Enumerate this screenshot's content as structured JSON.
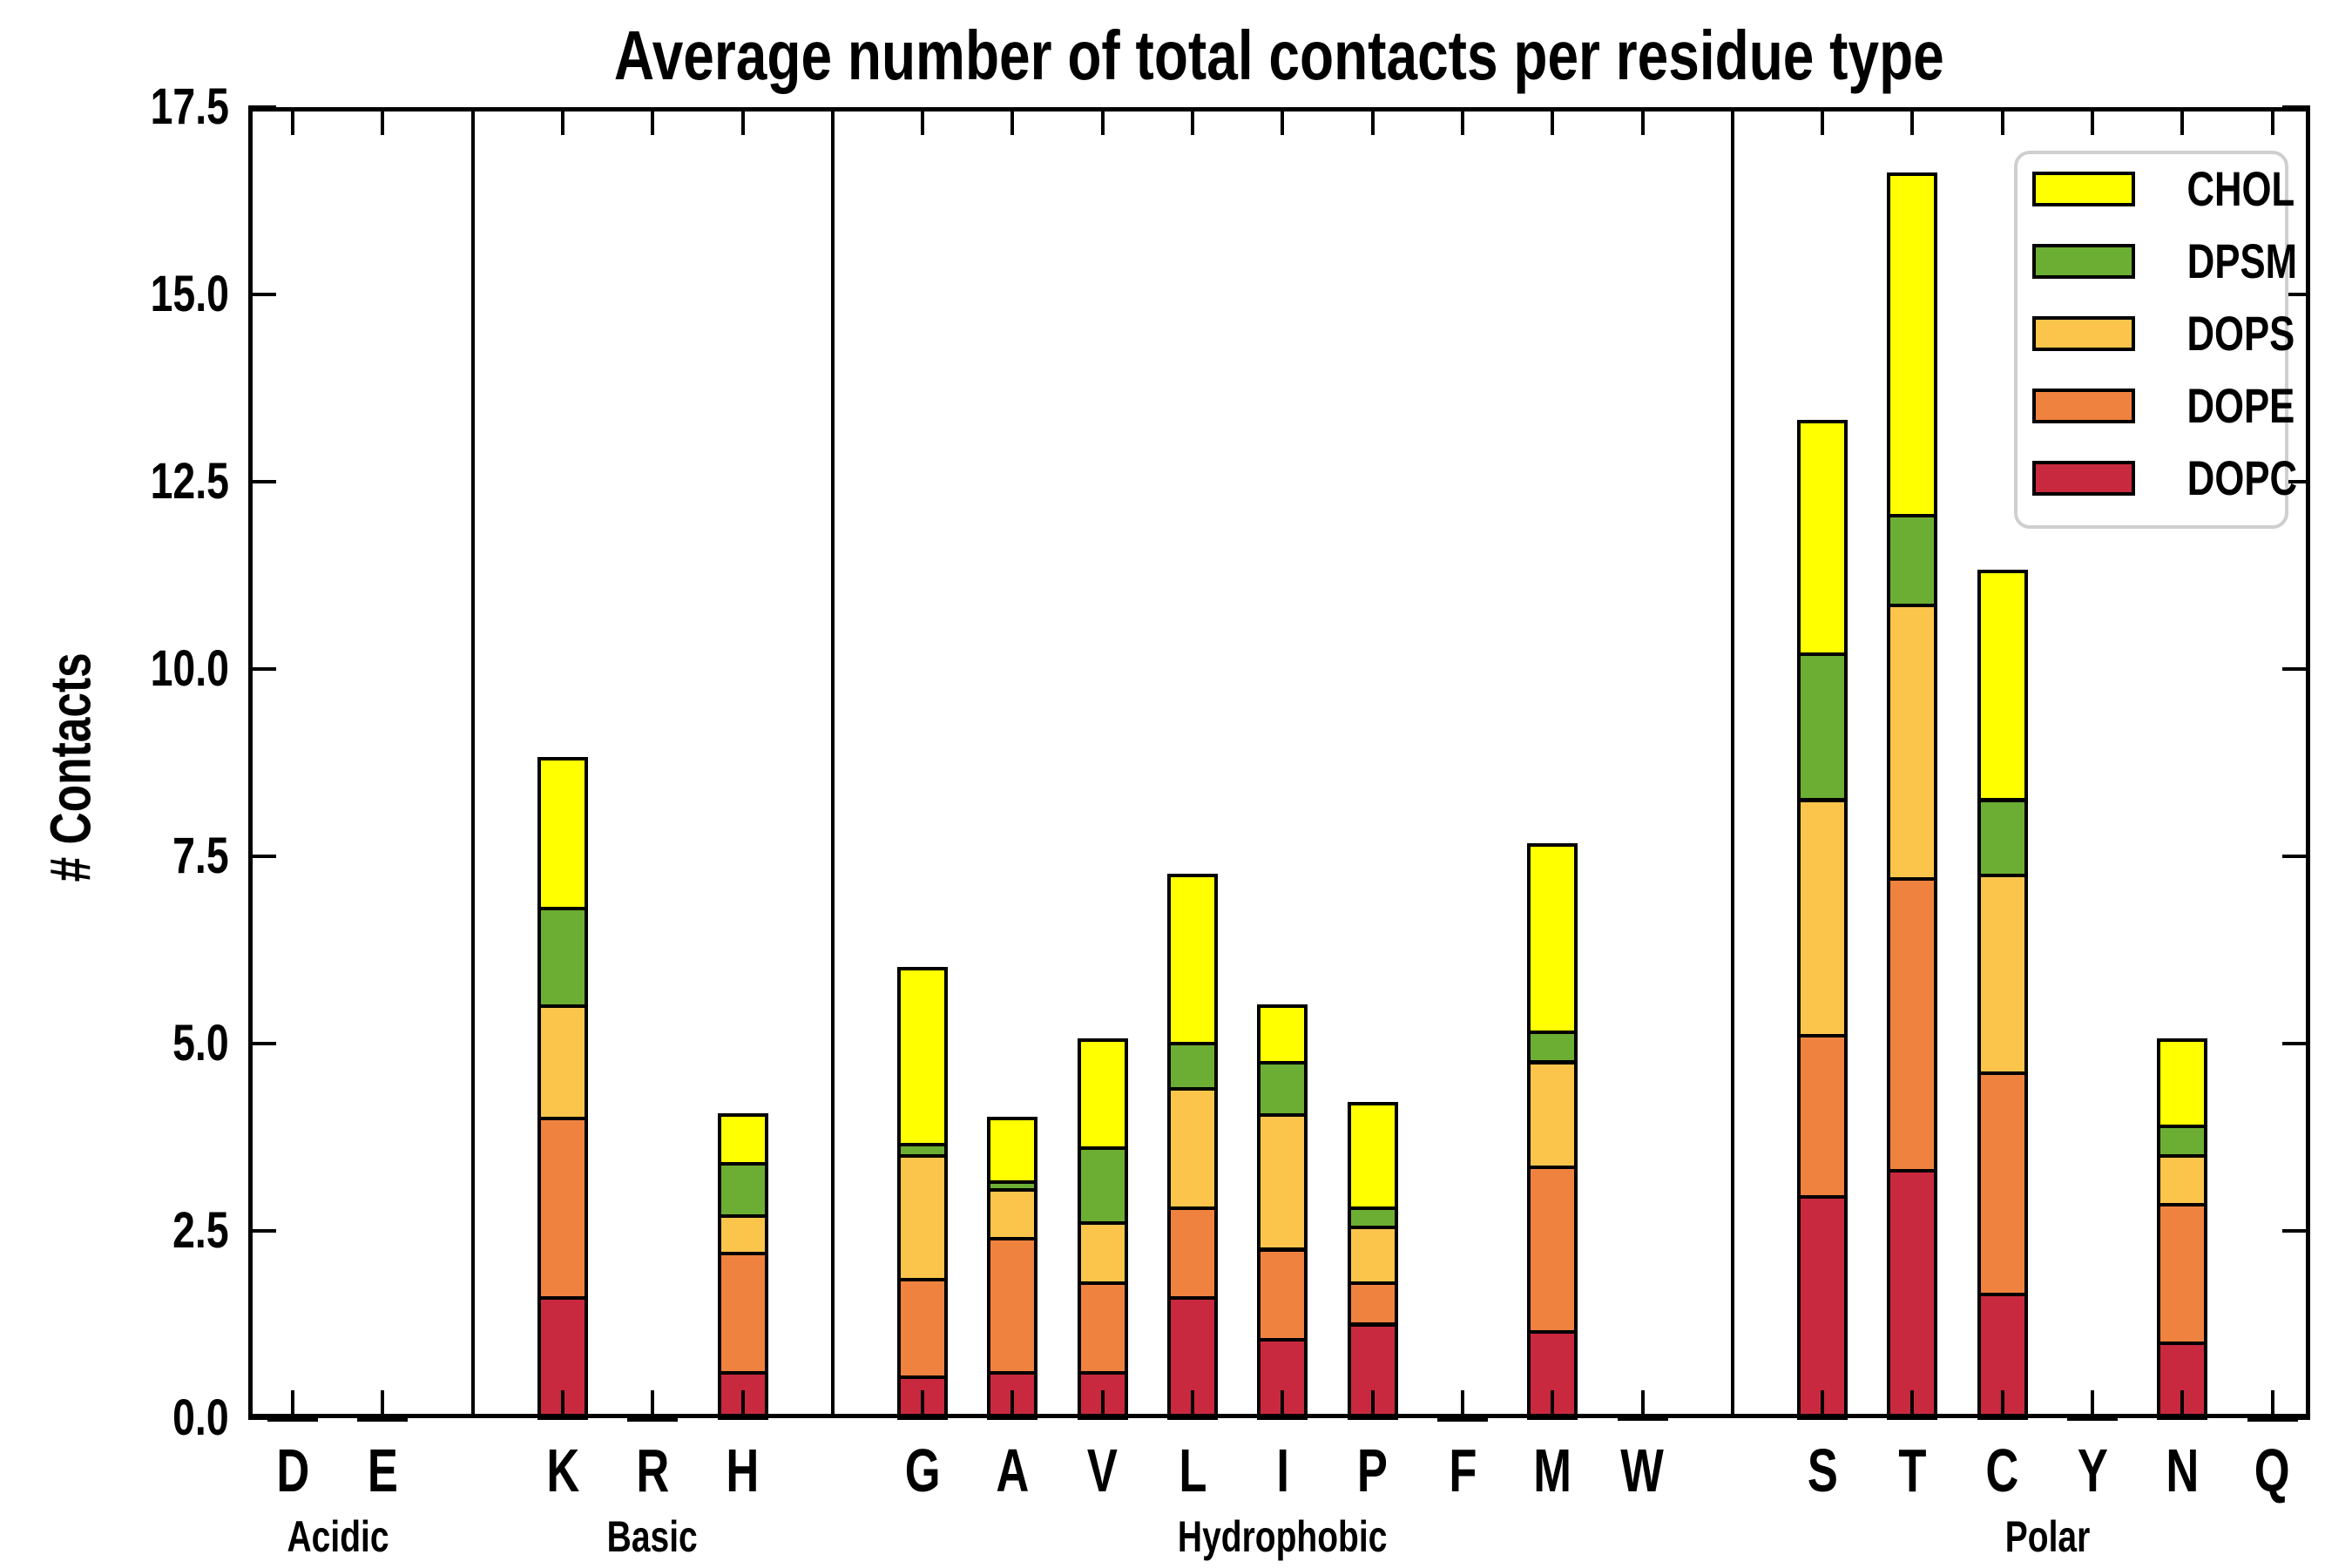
{
  "chart_data": {
    "type": "bar",
    "stacked": true,
    "title": "Average number of total contacts per residue type",
    "xlabel": "",
    "ylabel": "# Contacts",
    "ylim": [
      0,
      17.5
    ],
    "ytick_labels": [
      "0.0",
      "2.5",
      "5.0",
      "7.5",
      "10.0",
      "12.5",
      "15.0",
      "17.5"
    ],
    "grid": false,
    "legend_position": "upper right",
    "series_order_bottom_to_top": [
      "DOPC",
      "DOPE",
      "DOPS",
      "DPSM",
      "CHOL"
    ],
    "legend": [
      {
        "name": "CHOL",
        "color": "#FFFF00"
      },
      {
        "name": "DPSM",
        "color": "#6CAE33"
      },
      {
        "name": "DOPS",
        "color": "#FBC54B"
      },
      {
        "name": "DOPE",
        "color": "#F0823F"
      },
      {
        "name": "DOPC",
        "color": "#C9293F"
      }
    ],
    "series_colors": {
      "DOPC": "#C9293F",
      "DOPE": "#F0823F",
      "DOPS": "#FBC54B",
      "DPSM": "#6CAE33",
      "CHOL": "#FFFF00"
    },
    "groups": [
      {
        "label": "Acidic",
        "residues": [
          {
            "label": "D",
            "values": {
              "DOPC": 0.02,
              "DOPE": 0,
              "DOPS": 0,
              "DPSM": 0,
              "CHOL": 0
            }
          },
          {
            "label": "E",
            "values": {
              "DOPC": 0.02,
              "DOPE": 0,
              "DOPS": 0,
              "DPSM": 0,
              "CHOL": 0
            }
          }
        ]
      },
      {
        "label": "Basic",
        "residues": [
          {
            "label": "K",
            "values": {
              "DOPC": 1.6,
              "DOPE": 2.4,
              "DOPS": 1.5,
              "DPSM": 1.3,
              "CHOL": 2.0
            }
          },
          {
            "label": "R",
            "values": {
              "DOPC": 0.02,
              "DOPE": 0,
              "DOPS": 0,
              "DPSM": 0,
              "CHOL": 0
            }
          },
          {
            "label": "H",
            "values": {
              "DOPC": 0.6,
              "DOPE": 1.6,
              "DOPS": 0.5,
              "DPSM": 0.7,
              "CHOL": 0.65
            }
          }
        ]
      },
      {
        "label": "Hydrophobic",
        "residues": [
          {
            "label": "G",
            "values": {
              "DOPC": 0.55,
              "DOPE": 1.3,
              "DOPS": 1.65,
              "DPSM": 0.15,
              "CHOL": 2.35
            }
          },
          {
            "label": "A",
            "values": {
              "DOPC": 0.6,
              "DOPE": 1.8,
              "DOPS": 0.65,
              "DPSM": 0.1,
              "CHOL": 0.85
            }
          },
          {
            "label": "V",
            "values": {
              "DOPC": 0.6,
              "DOPE": 1.2,
              "DOPS": 0.8,
              "DPSM": 1.0,
              "CHOL": 1.45
            }
          },
          {
            "label": "L",
            "values": {
              "DOPC": 1.6,
              "DOPE": 1.2,
              "DOPS": 1.6,
              "DPSM": 0.6,
              "CHOL": 2.25
            }
          },
          {
            "label": "I",
            "values": {
              "DOPC": 1.05,
              "DOPE": 1.2,
              "DOPS": 1.8,
              "DPSM": 0.7,
              "CHOL": 0.75
            }
          },
          {
            "label": "P",
            "values": {
              "DOPC": 1.25,
              "DOPE": 0.55,
              "DOPS": 0.75,
              "DPSM": 0.25,
              "CHOL": 1.4
            }
          },
          {
            "label": "F",
            "values": {
              "DOPC": 0.02,
              "DOPE": 0,
              "DOPS": 0,
              "DPSM": 0,
              "CHOL": 0
            }
          },
          {
            "label": "M",
            "values": {
              "DOPC": 1.15,
              "DOPE": 2.2,
              "DOPS": 1.4,
              "DPSM": 0.4,
              "CHOL": 2.5
            }
          },
          {
            "label": "W",
            "values": {
              "DOPC": 0.03,
              "DOPE": 0,
              "DOPS": 0,
              "DPSM": 0,
              "CHOL": 0
            }
          }
        ]
      },
      {
        "label": "Polar",
        "residues": [
          {
            "label": "S",
            "values": {
              "DOPC": 2.95,
              "DOPE": 2.15,
              "DOPS": 3.15,
              "DPSM": 1.95,
              "CHOL": 3.1
            }
          },
          {
            "label": "T",
            "values": {
              "DOPC": 3.3,
              "DOPE": 3.9,
              "DOPS": 3.65,
              "DPSM": 1.2,
              "CHOL": 4.55
            }
          },
          {
            "label": "C",
            "values": {
              "DOPC": 1.65,
              "DOPE": 2.95,
              "DOPS": 2.65,
              "DPSM": 1.0,
              "CHOL": 3.05
            }
          },
          {
            "label": "Y",
            "values": {
              "DOPC": 0.03,
              "DOPE": 0,
              "DOPS": 0,
              "DPSM": 0,
              "CHOL": 0
            }
          },
          {
            "label": "N",
            "values": {
              "DOPC": 1.0,
              "DOPE": 1.85,
              "DOPS": 0.65,
              "DPSM": 0.4,
              "CHOL": 1.15
            }
          },
          {
            "label": "Q",
            "values": {
              "DOPC": 0.02,
              "DOPE": 0,
              "DOPS": 0,
              "DPSM": 0,
              "CHOL": 0
            }
          }
        ]
      }
    ]
  }
}
